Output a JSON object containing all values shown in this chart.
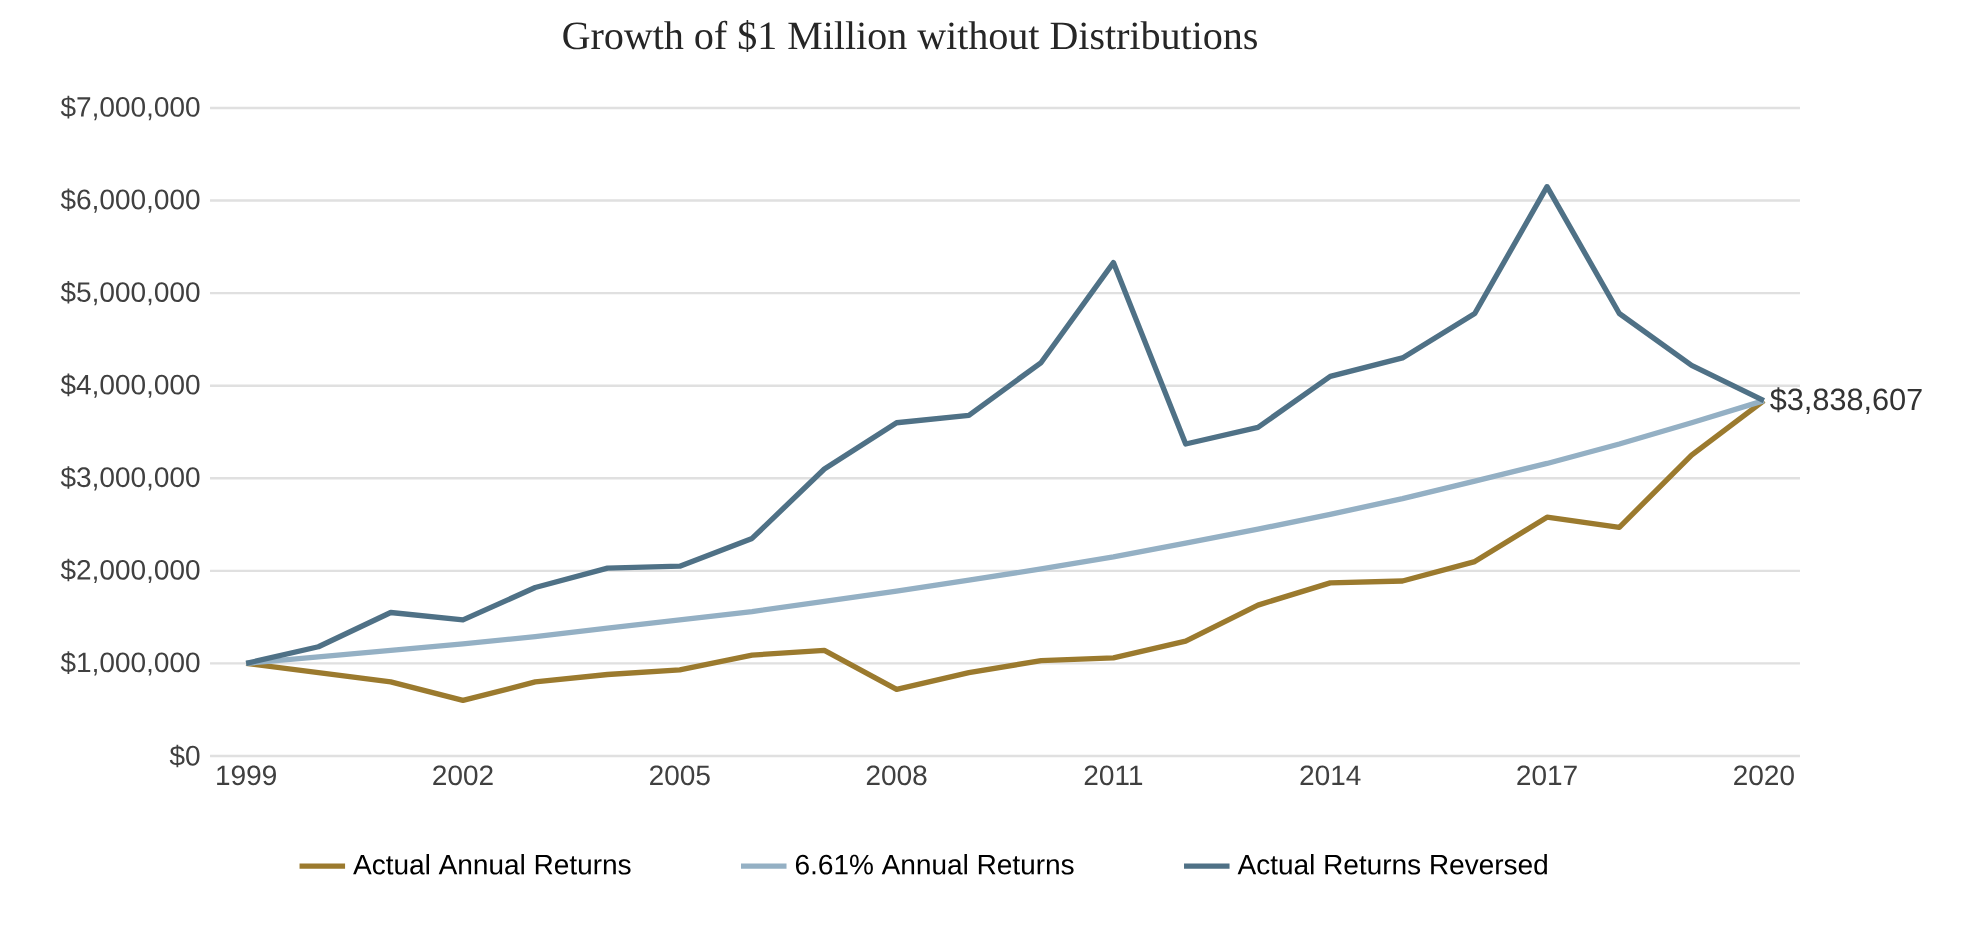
{
  "chart_data": {
    "type": "line",
    "title": "Growth of $1 Million without Distributions",
    "x": [
      1999,
      2000,
      2001,
      2002,
      2003,
      2004,
      2005,
      2006,
      2007,
      2008,
      2009,
      2010,
      2011,
      2012,
      2013,
      2014,
      2015,
      2016,
      2017,
      2018,
      2019,
      2020
    ],
    "series": [
      {
        "name": "Actual Annual Returns",
        "color": "#9b7a2e",
        "values": [
          1000000,
          900000,
          800000,
          600000,
          800000,
          880000,
          930000,
          1090000,
          1140000,
          720000,
          900000,
          1030000,
          1060000,
          1240000,
          1630000,
          1870000,
          1890000,
          2100000,
          2580000,
          2470000,
          3250000,
          3838607
        ]
      },
      {
        "name": "6.61% Annual Returns",
        "color": "#94b0c4",
        "values": [
          1000000,
          1070000,
          1140000,
          1210000,
          1290000,
          1380000,
          1470000,
          1560000,
          1670000,
          1780000,
          1900000,
          2020000,
          2150000,
          2300000,
          2450000,
          2610000,
          2780000,
          2970000,
          3160000,
          3370000,
          3600000,
          3838607
        ]
      },
      {
        "name": "Actual Returns Reversed",
        "color": "#4f7186",
        "values": [
          1000000,
          1180000,
          1550000,
          1470000,
          1820000,
          2030000,
          2050000,
          2350000,
          3100000,
          3600000,
          3680000,
          4250000,
          5330000,
          3370000,
          3550000,
          4100000,
          4300000,
          4780000,
          6150000,
          4780000,
          4220000,
          3838607
        ]
      }
    ],
    "xlim": [
      1998.5,
      2020.5
    ],
    "xticks": [
      1999,
      2002,
      2005,
      2008,
      2011,
      2014,
      2017,
      2020
    ],
    "ylim": [
      0,
      7000000
    ],
    "yticks": [
      {
        "value": 0,
        "label": "$0"
      },
      {
        "value": 1000000,
        "label": "$1,000,000"
      },
      {
        "value": 2000000,
        "label": "$2,000,000"
      },
      {
        "value": 3000000,
        "label": "$3,000,000"
      },
      {
        "value": 4000000,
        "label": "$4,000,000"
      },
      {
        "value": 5000000,
        "label": "$5,000,000"
      },
      {
        "value": 6000000,
        "label": "$6,000,000"
      },
      {
        "value": 7000000,
        "label": "$7,000,000"
      }
    ],
    "grid": "y",
    "legend": "bottom",
    "annotations": [
      {
        "text": "$3,838,607",
        "x": 2020,
        "y": 3838607
      }
    ]
  }
}
